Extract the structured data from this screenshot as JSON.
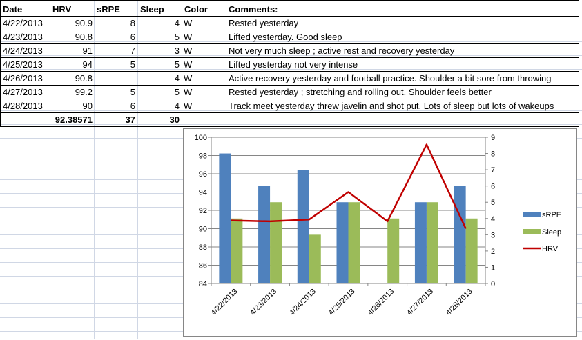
{
  "sheet": {
    "headers": [
      "Date",
      "HRV",
      "sRPE",
      "Sleep",
      "Color",
      "Comments:"
    ],
    "rows": [
      {
        "date": "4/22/2013",
        "hrv": "90.9",
        "srpe": "8",
        "sleep": "4",
        "color": "W",
        "comment": "Rested yesterday"
      },
      {
        "date": "4/23/2013",
        "hrv": "90.8",
        "srpe": "6",
        "sleep": "5",
        "color": "W",
        "comment": "Lifted yesterday. Good sleep"
      },
      {
        "date": "4/24/2013",
        "hrv": "91",
        "srpe": "7",
        "sleep": "3",
        "color": "W",
        "comment": "Not very much sleep ; active rest and recovery yesterday"
      },
      {
        "date": "4/25/2013",
        "hrv": "94",
        "srpe": "5",
        "sleep": "5",
        "color": "W",
        "comment": "Lifted yesterday not very intense"
      },
      {
        "date": "4/26/2013",
        "hrv": "90.8",
        "srpe": "",
        "sleep": "4",
        "color": "W",
        "comment": "Active recovery yesterday and football practice. Shoulder a bit sore from throwing"
      },
      {
        "date": "4/27/2013",
        "hrv": "99.2",
        "srpe": "5",
        "sleep": "5",
        "color": "W",
        "comment": "Rested yesterday ; stretching and rolling out. Shoulder feels better"
      },
      {
        "date": "4/28/2013",
        "hrv": "90",
        "srpe": "6",
        "sleep": "4",
        "color": "W",
        "comment": "Track meet yesterday threw javelin and shot put. Lots of sleep but lots of wakeups"
      }
    ],
    "totals": {
      "hrv": "92.38571",
      "srpe": "37",
      "sleep": "30"
    }
  },
  "colors": {
    "srpe": "#4F81BD",
    "sleep": "#9BBB59",
    "hrv": "#C00000",
    "gridline": "#868686"
  },
  "chart_data": {
    "type": "bar",
    "categories": [
      "4/22/2013",
      "4/23/2013",
      "4/24/2013",
      "4/25/2013",
      "4/26/2013",
      "4/27/2013",
      "4/28/2013"
    ],
    "series": [
      {
        "name": "sRPE",
        "type": "bar",
        "axis": "secondary",
        "values": [
          8,
          6,
          7,
          5,
          null,
          5,
          6
        ]
      },
      {
        "name": "Sleep",
        "type": "bar",
        "axis": "secondary",
        "values": [
          4,
          5,
          3,
          5,
          4,
          5,
          4
        ]
      },
      {
        "name": "HRV",
        "type": "line",
        "axis": "primary",
        "values": [
          90.9,
          90.8,
          91,
          94,
          90.8,
          99.2,
          90
        ]
      }
    ],
    "y_primary": {
      "min": 84,
      "max": 100,
      "step": 2,
      "ticks": [
        "84",
        "86",
        "88",
        "90",
        "92",
        "94",
        "96",
        "98",
        "100"
      ]
    },
    "y_secondary": {
      "min": 0,
      "max": 9,
      "step": 1,
      "ticks": [
        "0",
        "1",
        "2",
        "3",
        "4",
        "5",
        "6",
        "7",
        "8",
        "9"
      ]
    },
    "legend": {
      "position": "right",
      "entries": [
        "sRPE",
        "Sleep",
        "HRV"
      ]
    },
    "grid": true
  }
}
